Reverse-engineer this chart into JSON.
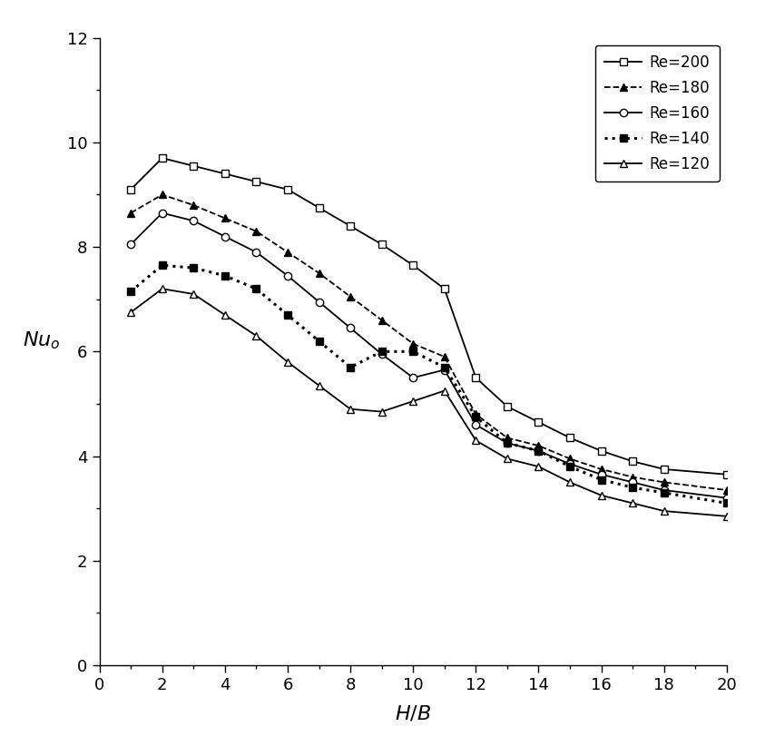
{
  "title": "",
  "ylabel": "Nu_o",
  "xlim": [
    0,
    20
  ],
  "ylim": [
    0,
    12
  ],
  "xticks": [
    0,
    2,
    4,
    6,
    8,
    10,
    12,
    14,
    16,
    18,
    20
  ],
  "yticks": [
    0,
    2,
    4,
    6,
    8,
    10,
    12
  ],
  "series": [
    {
      "label": "Re=200",
      "linestyle": "-",
      "marker": "s",
      "markerfacecolor": "white",
      "markeredgecolor": "black",
      "color": "black",
      "linewidth": 1.3,
      "markersize": 6,
      "x": [
        1,
        2,
        3,
        4,
        5,
        6,
        7,
        8,
        9,
        10,
        11,
        12,
        13,
        14,
        15,
        16,
        17,
        18,
        20
      ],
      "y": [
        9.1,
        9.7,
        9.55,
        9.4,
        9.25,
        9.1,
        8.75,
        8.4,
        8.05,
        7.65,
        7.2,
        5.5,
        4.95,
        4.65,
        4.35,
        4.1,
        3.9,
        3.75,
        3.65
      ]
    },
    {
      "label": "Re=180",
      "linestyle": "--",
      "marker": "^",
      "markerfacecolor": "black",
      "markeredgecolor": "black",
      "color": "black",
      "linewidth": 1.3,
      "markersize": 6,
      "x": [
        1,
        2,
        3,
        4,
        5,
        6,
        7,
        8,
        9,
        10,
        11,
        12,
        13,
        14,
        15,
        16,
        17,
        18,
        20
      ],
      "y": [
        8.65,
        9.0,
        8.8,
        8.55,
        8.3,
        7.9,
        7.5,
        7.05,
        6.6,
        6.15,
        5.9,
        4.8,
        4.35,
        4.2,
        3.95,
        3.75,
        3.6,
        3.5,
        3.35
      ]
    },
    {
      "label": "Re=160",
      "linestyle": "-",
      "marker": "o",
      "markerfacecolor": "white",
      "markeredgecolor": "black",
      "color": "black",
      "linewidth": 1.3,
      "markersize": 6,
      "x": [
        1,
        2,
        3,
        4,
        5,
        6,
        7,
        8,
        9,
        10,
        11,
        12,
        13,
        14,
        15,
        16,
        17,
        18,
        20
      ],
      "y": [
        8.05,
        8.65,
        8.5,
        8.2,
        7.9,
        7.45,
        6.95,
        6.45,
        5.95,
        5.5,
        5.65,
        4.6,
        4.25,
        4.1,
        3.85,
        3.65,
        3.5,
        3.35,
        3.2
      ]
    },
    {
      "label": "Re=140",
      "linestyle": ":",
      "marker": "s",
      "markerfacecolor": "black",
      "markeredgecolor": "black",
      "color": "black",
      "linewidth": 2.2,
      "markersize": 6,
      "x": [
        1,
        2,
        3,
        4,
        5,
        6,
        7,
        8,
        9,
        10,
        11,
        12,
        13,
        14,
        15,
        16,
        17,
        18,
        20
      ],
      "y": [
        7.15,
        7.65,
        7.6,
        7.45,
        7.2,
        6.7,
        6.2,
        5.7,
        6.0,
        6.0,
        5.7,
        4.75,
        4.25,
        4.1,
        3.8,
        3.55,
        3.4,
        3.3,
        3.1
      ]
    },
    {
      "label": "Re=120",
      "linestyle": "-",
      "marker": "^",
      "markerfacecolor": "white",
      "markeredgecolor": "black",
      "color": "black",
      "linewidth": 1.3,
      "markersize": 6,
      "x": [
        1,
        2,
        3,
        4,
        5,
        6,
        7,
        8,
        9,
        10,
        11,
        12,
        13,
        14,
        15,
        16,
        17,
        18,
        20
      ],
      "y": [
        6.75,
        7.2,
        7.1,
        6.7,
        6.3,
        5.8,
        5.35,
        4.9,
        4.85,
        5.05,
        5.25,
        4.3,
        3.95,
        3.8,
        3.5,
        3.25,
        3.1,
        2.95,
        2.85
      ]
    }
  ]
}
